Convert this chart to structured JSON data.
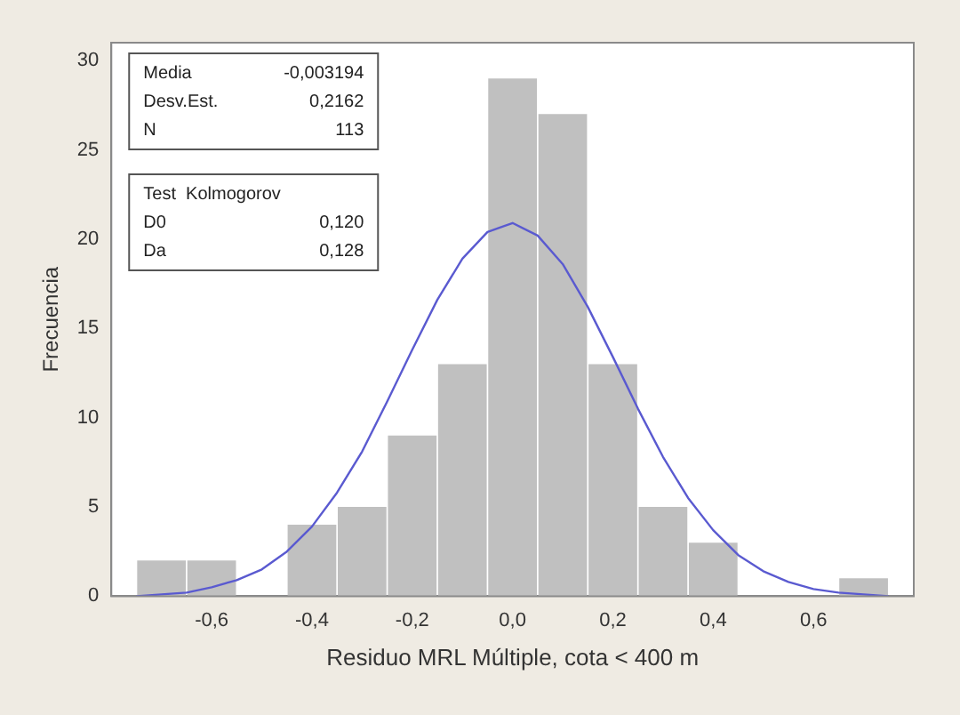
{
  "chart_data": {
    "type": "histogram",
    "xlabel": "Residuo MRL Múltiple, cota < 400 m",
    "ylabel": "Frecuencia",
    "color": "#c0c0c0",
    "bins": [
      -0.75,
      -0.65,
      -0.55,
      -0.45,
      -0.35,
      -0.25,
      -0.15,
      -0.05,
      0.05,
      0.15,
      0.25,
      0.35,
      0.45,
      0.55,
      0.65,
      0.75
    ],
    "values": [
      2,
      2,
      0,
      4,
      5,
      9,
      13,
      29,
      27,
      13,
      5,
      3,
      0,
      0,
      1
    ],
    "series": [
      {
        "type": "line",
        "color": "#5a5ad0",
        "x": [
          -0.75,
          -0.7,
          -0.65,
          -0.6,
          -0.55,
          -0.5,
          -0.45,
          -0.4,
          -0.35,
          -0.3,
          -0.25,
          -0.2,
          -0.15,
          -0.1,
          -0.05,
          0,
          0.05,
          0.1,
          0.15,
          0.2,
          0.25,
          0.3,
          0.35,
          0.4,
          0.45,
          0.5,
          0.55,
          0.6,
          0.65,
          0.7,
          0.75
        ],
        "values": [
          0,
          0.1,
          0.2,
          0.5,
          0.9,
          1.5,
          2.5,
          3.9,
          5.8,
          8.1,
          10.9,
          13.8,
          16.6,
          18.9,
          20.4,
          20.9,
          20.2,
          18.6,
          16.2,
          13.4,
          10.5,
          7.8,
          5.5,
          3.7,
          2.3,
          1.4,
          0.8,
          0.4,
          0.2,
          0.1,
          0
        ]
      }
    ],
    "xlim": [
      -0.8,
      0.8
    ],
    "xticks": [
      {
        "value": -0.6,
        "label": "-0,6"
      },
      {
        "value": -0.4,
        "label": "-0,4"
      },
      {
        "value": -0.2,
        "label": "-0,2"
      },
      {
        "value": 0,
        "label": "0,0"
      },
      {
        "value": 0.2,
        "label": "0,2"
      },
      {
        "value": 0.4,
        "label": "0,4"
      },
      {
        "value": 0.6,
        "label": "0,6"
      }
    ],
    "ylim": [
      0,
      31
    ],
    "yticks": [
      0,
      5,
      10,
      15,
      20,
      25,
      30
    ],
    "annotations": [
      "Media\t-0,003194\nDesv.Est.\t0,2162\nN\t113",
      "Test  Kolmogorov\nD0\t0,120\nDa\t0,128"
    ]
  }
}
